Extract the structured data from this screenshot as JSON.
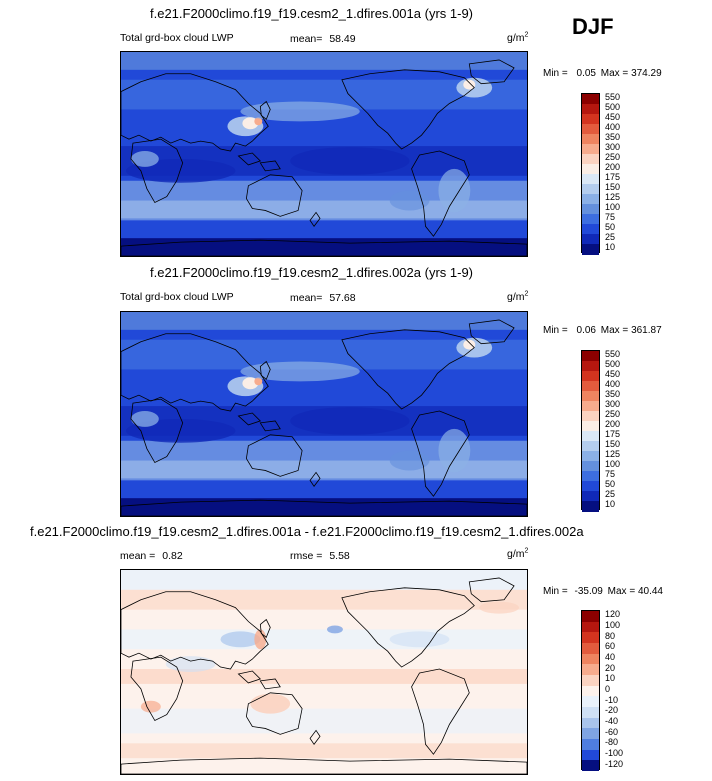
{
  "header": {
    "season": "DJF"
  },
  "chart_data": [
    {
      "type": "heatmap",
      "title": "f.e21.F2000climo.f19_f19.cesm2_1.dfires.001a (yrs 1-9)",
      "left_label": "Total grd-box cloud LWP",
      "stat_label": "mean=",
      "stat_value": "58.49",
      "units": "g/m",
      "units_exp": "2",
      "min_label": "Min =",
      "min_value": "0.05",
      "max_label": "Max =",
      "max_value": "374.29",
      "levels": [
        "550",
        "500",
        "450",
        "400",
        "350",
        "300",
        "250",
        "200",
        "175",
        "150",
        "125",
        "100",
        "75",
        "50",
        "25",
        "10"
      ],
      "colors": [
        "#8b0000",
        "#b5170f",
        "#d3341f",
        "#e35b3d",
        "#ef8460",
        "#f7ab8d",
        "#fbd3c1",
        "#fbeee6",
        "#dbe8f6",
        "#b4cdee",
        "#8bb0e6",
        "#6490dd",
        "#3d6ee0",
        "#2149d8",
        "#1029b8",
        "#050f80"
      ]
    },
    {
      "type": "heatmap",
      "title": "f.e21.F2000climo.f19_f19.cesm2_1.dfires.002a (yrs 1-9)",
      "left_label": "Total grd-box cloud LWP",
      "stat_label": "mean=",
      "stat_value": "57.68",
      "units": "g/m",
      "units_exp": "2",
      "min_label": "Min =",
      "min_value": "0.06",
      "max_label": "Max =",
      "max_value": "361.87",
      "levels": [
        "550",
        "500",
        "450",
        "400",
        "350",
        "300",
        "250",
        "200",
        "175",
        "150",
        "125",
        "100",
        "75",
        "50",
        "25",
        "10"
      ],
      "colors": [
        "#8b0000",
        "#b5170f",
        "#d3341f",
        "#e35b3d",
        "#ef8460",
        "#f7ab8d",
        "#fbd3c1",
        "#fbeee6",
        "#dbe8f6",
        "#b4cdee",
        "#8bb0e6",
        "#6490dd",
        "#3d6ee0",
        "#2149d8",
        "#1029b8",
        "#050f80"
      ]
    },
    {
      "type": "heatmap",
      "title": "f.e21.F2000climo.f19_f19.cesm2_1.dfires.001a - f.e21.F2000climo.f19_f19.cesm2_1.dfires.002a",
      "left_label": "mean =",
      "left_value": "0.82",
      "stat_label": "rmse =",
      "stat_value": "5.58",
      "units": "g/m",
      "units_exp": "2",
      "min_label": "Min =",
      "min_value": "-35.09",
      "max_label": "Max =",
      "max_value": "40.44",
      "levels": [
        "120",
        "100",
        "80",
        "60",
        "40",
        "20",
        "10",
        "0",
        "-10",
        "-20",
        "-40",
        "-60",
        "-80",
        "-100",
        "-120"
      ],
      "colors": [
        "#8b0000",
        "#b5170f",
        "#d3341f",
        "#e35b3d",
        "#ef8460",
        "#f7ab8d",
        "#fbd3c1",
        "#fdf2ec",
        "#eaf2fb",
        "#cfe0f5",
        "#a9c4ec",
        "#7fa4e3",
        "#4f7ee0",
        "#2149d8",
        "#050f80"
      ]
    }
  ]
}
